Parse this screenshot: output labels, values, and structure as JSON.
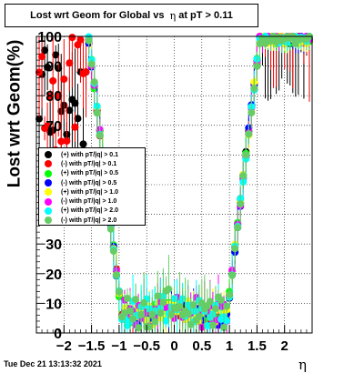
{
  "title_main": "Lost wrt Geom for Global vs",
  "title_eta": "η",
  "title_rest": "at pT > 0.11",
  "footer": {
    "datestamp": "Tue Dec 21 13:13:32 2021"
  },
  "chart_data": {
    "type": "scatter",
    "title": "Lost wrt Geom for Global vs η at pT > 0.11",
    "xlabel": "η",
    "ylabel": "Lost wrt Geom(%)",
    "xlim": [
      -2.5,
      2.5
    ],
    "ylim": [
      0,
      100
    ],
    "x_ticks": [
      -2,
      -1.5,
      -1,
      -0.5,
      0,
      0.5,
      1,
      1.5,
      2
    ],
    "x_tick_labels": [
      "−2",
      "−1.5",
      "−1",
      "−0.5",
      "0",
      "0.5",
      "1",
      "1.5",
      "2"
    ],
    "y_ticks": [
      0,
      10,
      20,
      30,
      40,
      50,
      60,
      70,
      80,
      90,
      100
    ],
    "y_tick_labels": [
      "0",
      "10",
      "20",
      "30",
      "40",
      "50",
      "60",
      "70",
      "80",
      "90",
      "100"
    ],
    "grid": true,
    "legend_position": "middle-left",
    "series": [
      {
        "name": "(+) with pT/|q| > 0.1",
        "color": "#000000"
      },
      {
        "name": "(-) with pT/|q| > 0.1",
        "color": "#ff0000"
      },
      {
        "name": "(+) with pT/|q| > 0.5",
        "color": "#00ff00"
      },
      {
        "name": "(-) with pT/|q| > 0.5",
        "color": "#0000ff"
      },
      {
        "name": "(+) with pT/|q| > 1.0",
        "color": "#ffff00"
      },
      {
        "name": "(-) with pT/|q| > 1.0",
        "color": "#ff00ff"
      },
      {
        "name": "(+) with pT/|q| > 2.0",
        "color": "#00ffff"
      },
      {
        "name": "(-) with pT/|q| > 2.0",
        "color": "#66cc66"
      }
    ]
  }
}
